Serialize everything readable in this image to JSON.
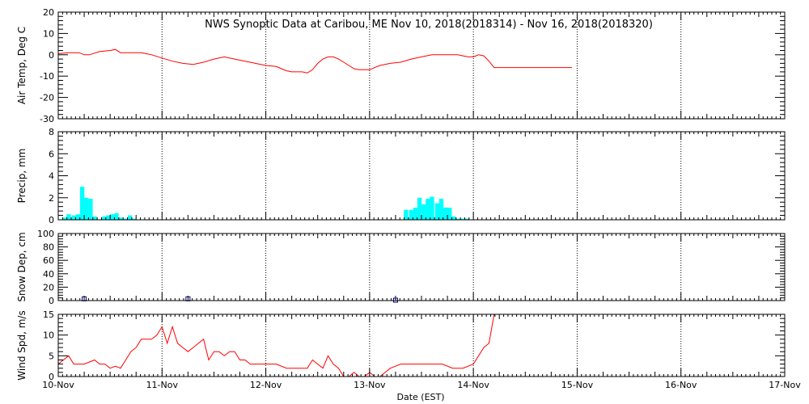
{
  "chart_data": {
    "title": "NWS Synoptic Data at Caribou, ME    Nov 10, 2018(2018314) - Nov 16, 2018(2018320)",
    "xlabel": "Date (EST)",
    "x_ticks": [
      "10-Nov",
      "11-Nov",
      "12-Nov",
      "13-Nov",
      "14-Nov",
      "15-Nov",
      "16-Nov",
      "17-Nov"
    ],
    "xlim_days": [
      0,
      7
    ],
    "grid": true,
    "panels": [
      {
        "type": "line",
        "ylabel": "Air Temp, Deg C",
        "ylim": [
          -30,
          20
        ],
        "yticks": [
          -30,
          -20,
          -10,
          0,
          10,
          20
        ],
        "color": "#ff0000",
        "series": [
          {
            "x": [
              0.0,
              0.1,
              0.2,
              0.25,
              0.3,
              0.4,
              0.5,
              0.55,
              0.6,
              0.7,
              0.8,
              0.85,
              0.9,
              1.0,
              1.1,
              1.2,
              1.3,
              1.4,
              1.5,
              1.55,
              1.6,
              1.7,
              1.8,
              1.9,
              2.0,
              2.1,
              2.15,
              2.2,
              2.25,
              2.3,
              2.35,
              2.4,
              2.45,
              2.5,
              2.55,
              2.6,
              2.65,
              2.7,
              2.75,
              2.8,
              2.85,
              2.9,
              2.95,
              3.0,
              3.05,
              3.1,
              3.2,
              3.3,
              3.4,
              3.5,
              3.6,
              3.7,
              3.75,
              3.8,
              3.85,
              3.9,
              3.95,
              4.0,
              4.05,
              4.1,
              4.15,
              4.2,
              4.3,
              4.4,
              4.6,
              4.8,
              4.95
            ],
            "y": [
              0.5,
              1,
              1,
              0,
              0,
              1.5,
              2,
              2.5,
              1,
              1,
              1,
              0.5,
              0,
              -1.5,
              -3,
              -4,
              -4.5,
              -3.5,
              -2,
              -1.5,
              -1,
              -2,
              -3,
              -4,
              -5,
              -5.5,
              -6.5,
              -7.5,
              -8,
              -8,
              -8,
              -8.5,
              -7,
              -4,
              -2,
              -1,
              -1,
              -2,
              -3.5,
              -5,
              -6.5,
              -7,
              -7,
              -7,
              -6,
              -5,
              -4,
              -3.5,
              -2,
              -1,
              0,
              0,
              0,
              0,
              0,
              -0.5,
              -1,
              -1,
              0,
              -0.5,
              -3,
              -6,
              -6,
              -6,
              -6,
              -6,
              -6
            ]
          }
        ]
      },
      {
        "type": "bar",
        "ylabel": "Precip, mm",
        "ylim": [
          0,
          8
        ],
        "yticks": [
          0,
          2,
          4,
          6,
          8
        ],
        "color": "#00ffff",
        "bar_width_days": 0.0417,
        "x": [
          0.04,
          0.08,
          0.13,
          0.17,
          0.21,
          0.25,
          0.29,
          0.33,
          0.42,
          0.46,
          0.5,
          0.54,
          0.58,
          0.63,
          0.67,
          0.71,
          3.33,
          3.38,
          3.42,
          3.46,
          3.5,
          3.54,
          3.58,
          3.63,
          3.67,
          3.71,
          3.75,
          3.79,
          3.83,
          3.88,
          3.92
        ],
        "values": [
          0.2,
          0.5,
          0.4,
          0.5,
          3.0,
          2.0,
          1.9,
          0.3,
          0.3,
          0.4,
          0.5,
          0.6,
          0.2,
          0.1,
          0.4,
          0.1,
          0.9,
          0.9,
          1.1,
          2.0,
          1.4,
          1.9,
          2.1,
          1.5,
          1.9,
          1.1,
          1.1,
          0.3,
          0.1,
          0.1,
          0.1
        ]
      },
      {
        "type": "scatter",
        "ylabel": "Snow Dep, cm",
        "ylim": [
          0,
          100
        ],
        "yticks": [
          0,
          20,
          40,
          60,
          80,
          100
        ],
        "color": "#000080",
        "marker": "square",
        "x": [
          0.25,
          1.25,
          3.25
        ],
        "values": [
          2,
          2,
          0
        ]
      },
      {
        "type": "line",
        "ylabel": "Wind Spd, m/s",
        "ylim": [
          0,
          15
        ],
        "yticks": [
          0,
          5,
          10,
          15
        ],
        "color": "#ff0000",
        "series": [
          {
            "x": [
              0.0,
              0.05,
              0.1,
              0.15,
              0.2,
              0.25,
              0.3,
              0.35,
              0.4,
              0.45,
              0.5,
              0.55,
              0.6,
              0.65,
              0.7,
              0.75,
              0.8,
              0.85,
              0.9,
              0.95,
              1.0,
              1.05,
              1.1,
              1.15,
              1.2,
              1.25,
              1.3,
              1.35,
              1.4,
              1.45,
              1.5,
              1.55,
              1.6,
              1.65,
              1.7,
              1.75,
              1.8,
              1.85,
              1.9,
              1.95,
              2.0,
              2.1,
              2.2,
              2.3,
              2.4,
              2.45,
              2.5,
              2.55,
              2.6,
              2.65,
              2.7,
              2.75,
              2.8,
              2.85,
              2.9,
              2.95,
              3.0,
              3.05,
              3.1,
              3.2,
              3.3,
              3.4,
              3.5,
              3.6,
              3.7,
              3.8,
              3.9,
              4.0,
              4.05,
              4.1,
              4.15,
              4.2
            ],
            "y": [
              3,
              4,
              5,
              3,
              3,
              3,
              3.5,
              4,
              3,
              3,
              2,
              2.5,
              2,
              4,
              6,
              7,
              9,
              9,
              9,
              10,
              12,
              8,
              12,
              8,
              7,
              6,
              7,
              8,
              9,
              4,
              6,
              6,
              5,
              6,
              6,
              4,
              4,
              3,
              3,
              3,
              3,
              3,
              2,
              2,
              2,
              4,
              3,
              2,
              5,
              3,
              2,
              0,
              0,
              1,
              0,
              0,
              1,
              0,
              0,
              2,
              3,
              3,
              3,
              3,
              3,
              2,
              2,
              3,
              5,
              7,
              8,
              15
            ]
          }
        ]
      }
    ]
  }
}
